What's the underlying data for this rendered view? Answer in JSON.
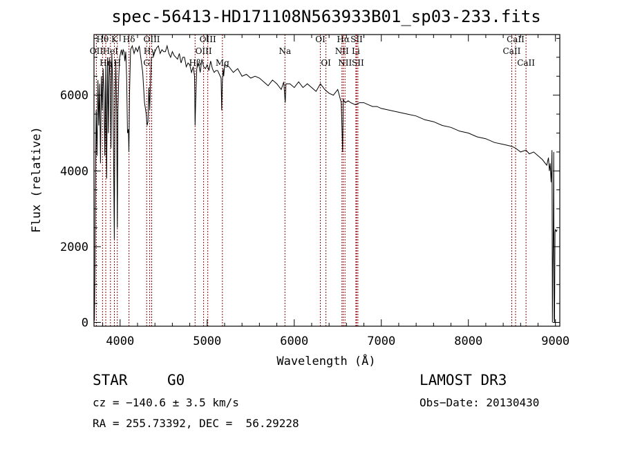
{
  "chart_data": {
    "type": "line",
    "title": "spec-56413-HD171108N563933B01_sp03-233.fits",
    "xlabel": "Wavelength (Å)",
    "ylabel": "Flux (relative)",
    "xlim": [
      3700,
      9050
    ],
    "ylim": [
      -100,
      7600
    ],
    "xticks": [
      4000,
      5000,
      6000,
      7000,
      8000,
      9000
    ],
    "yticks": [
      0,
      2000,
      4000,
      6000
    ],
    "grid": false,
    "series": [
      {
        "name": "flux",
        "x": [
          3700,
          3705,
          3710,
          3715,
          3720,
          3725,
          3735,
          3745,
          3755,
          3765,
          3775,
          3785,
          3795,
          3805,
          3815,
          3825,
          3835,
          3845,
          3855,
          3865,
          3875,
          3885,
          3895,
          3905,
          3915,
          3925,
          3933,
          3940,
          3950,
          3960,
          3968,
          3975,
          3985,
          3995,
          4005,
          4015,
          4025,
          4035,
          4045,
          4055,
          4065,
          4075,
          4085,
          4095,
          4101,
          4108,
          4120,
          4140,
          4160,
          4180,
          4200,
          4220,
          4240,
          4260,
          4280,
          4300,
          4310,
          4320,
          4330,
          4340,
          4350,
          4360,
          4380,
          4400,
          4420,
          4440,
          4460,
          4480,
          4500,
          4520,
          4540,
          4560,
          4580,
          4600,
          4620,
          4640,
          4660,
          4680,
          4700,
          4720,
          4740,
          4760,
          4780,
          4800,
          4820,
          4840,
          4855,
          4861,
          4868,
          4880,
          4900,
          4920,
          4940,
          4960,
          4980,
          5000,
          5020,
          5040,
          5060,
          5080,
          5100,
          5120,
          5140,
          5160,
          5167,
          5173,
          5183,
          5190,
          5200,
          5250,
          5300,
          5350,
          5400,
          5450,
          5500,
          5550,
          5600,
          5650,
          5700,
          5750,
          5800,
          5850,
          5880,
          5890,
          5896,
          5905,
          5950,
          6000,
          6050,
          6100,
          6150,
          6200,
          6250,
          6300,
          6350,
          6400,
          6450,
          6500,
          6540,
          6556,
          6563,
          6570,
          6585,
          6620,
          6650,
          6700,
          6750,
          6800,
          6850,
          6900,
          6950,
          7000,
          7100,
          7200,
          7300,
          7400,
          7500,
          7600,
          7700,
          7800,
          7900,
          8000,
          8100,
          8200,
          8300,
          8400,
          8498,
          8542,
          8600,
          8662,
          8700,
          8750,
          8800,
          8850,
          8900,
          8920,
          8930,
          8940,
          8950,
          8955,
          8960,
          8965,
          8970,
          8975,
          8980,
          8985,
          8990,
          8995,
          9000,
          9010,
          9020
        ],
        "values": [
          800,
          50,
          1200,
          3000,
          4400,
          5600,
          4400,
          6400,
          5200,
          6300,
          4200,
          6500,
          5600,
          6700,
          6000,
          4400,
          6800,
          3800,
          7000,
          5000,
          7000,
          6500,
          4600,
          7100,
          6300,
          4500,
          2200,
          5300,
          6900,
          5500,
          2500,
          5600,
          6500,
          7000,
          7100,
          7200,
          7050,
          7200,
          7150,
          6900,
          7150,
          6500,
          5000,
          5100,
          4500,
          6000,
          7200,
          7300,
          7100,
          7250,
          7150,
          7300,
          6950,
          6600,
          5800,
          5500,
          5200,
          5300,
          6200,
          5600,
          6400,
          7000,
          7000,
          7150,
          7250,
          7300,
          7100,
          7200,
          7150,
          7150,
          7300,
          7100,
          7000,
          7150,
          7050,
          7000,
          6950,
          7100,
          6850,
          7000,
          7000,
          6750,
          6850,
          6800,
          6600,
          6750,
          6500,
          5200,
          5800,
          6700,
          6850,
          6600,
          6950,
          6750,
          6700,
          6800,
          6650,
          6900,
          6700,
          6600,
          6650,
          6650,
          6550,
          6450,
          5600,
          6300,
          6700,
          6500,
          6800,
          6750,
          6600,
          6700,
          6500,
          6550,
          6450,
          6500,
          6450,
          6350,
          6250,
          6400,
          6300,
          6150,
          6350,
          6000,
          5800,
          6300,
          6300,
          6200,
          6350,
          6200,
          6300,
          6200,
          6100,
          6300,
          6150,
          6050,
          6000,
          6150,
          5800,
          4500,
          5900,
          5850,
          5800,
          5850,
          5800,
          5750,
          5800,
          5800,
          5750,
          5700,
          5700,
          5650,
          5600,
          5550,
          5500,
          5450,
          5350,
          5300,
          5200,
          5150,
          5050,
          5000,
          4900,
          4850,
          4750,
          4700,
          4650,
          4600,
          4500,
          4550,
          4450,
          4500,
          4400,
          4300,
          4150,
          4350,
          4000,
          4200,
          3700,
          4000,
          4550,
          0,
          1400,
          2400,
          4500,
          100,
          0,
          2400,
          2450,
          2400,
          2450
        ]
      }
    ],
    "line_ids": [
      {
        "label": "Hθ",
        "wavelength": 3798,
        "row": 1
      },
      {
        "label": "OII",
        "wavelength": 3727,
        "row": 2
      },
      {
        "label": "Hη",
        "wavelength": 3835,
        "row": 3
      },
      {
        "label": "HeI",
        "wavelength": 3889,
        "row": 2
      },
      {
        "label": "K",
        "wavelength": 3934,
        "row": 1
      },
      {
        "label": "H",
        "wavelength": 3968,
        "row": 3
      },
      {
        "label": "Hδ",
        "wavelength": 4102,
        "row": 1
      },
      {
        "label": "OIII",
        "wavelength": 4363,
        "row": 1
      },
      {
        "label": "Hγ",
        "wavelength": 4340,
        "row": 2
      },
      {
        "label": "G",
        "wavelength": 4305,
        "row": 3
      },
      {
        "label": "OIII",
        "wavelength": 5007,
        "row": 1
      },
      {
        "label": "OIII",
        "wavelength": 4959,
        "row": 2
      },
      {
        "label": "Hβ",
        "wavelength": 4861,
        "row": 3
      },
      {
        "label": "Mg",
        "wavelength": 5175,
        "row": 3
      },
      {
        "label": "Na",
        "wavelength": 5893,
        "row": 2
      },
      {
        "label": "OI",
        "wavelength": 6300,
        "row": 1
      },
      {
        "label": "OI",
        "wavelength": 6364,
        "row": 3
      },
      {
        "label": "Hα",
        "wavelength": 6563,
        "row": 1
      },
      {
        "label": "NII",
        "wavelength": 6548,
        "row": 2
      },
      {
        "label": "NII",
        "wavelength": 6583,
        "row": 3
      },
      {
        "label": "SII",
        "wavelength": 6716,
        "row": 1
      },
      {
        "label": "Li",
        "wavelength": 6708,
        "row": 2
      },
      {
        "label": "SII",
        "wavelength": 6731,
        "row": 3
      },
      {
        "label": "CaII",
        "wavelength": 8542,
        "row": 1
      },
      {
        "label": "CaII",
        "wavelength": 8498,
        "row": 2
      },
      {
        "label": "CaII",
        "wavelength": 8662,
        "row": 3
      }
    ]
  },
  "info": {
    "object_class": "STAR",
    "subclass": "G0",
    "survey": "LAMOST DR3",
    "cz": "cz = −140.6 ± 3.5 km/s",
    "obs_date": "Obs−Date: 20130430",
    "coords": "RA = 255.73392, DEC =  56.29228"
  },
  "colors": {
    "spectrum": "#000000",
    "line_markers": "#8b0000",
    "background": "#ffffff"
  }
}
